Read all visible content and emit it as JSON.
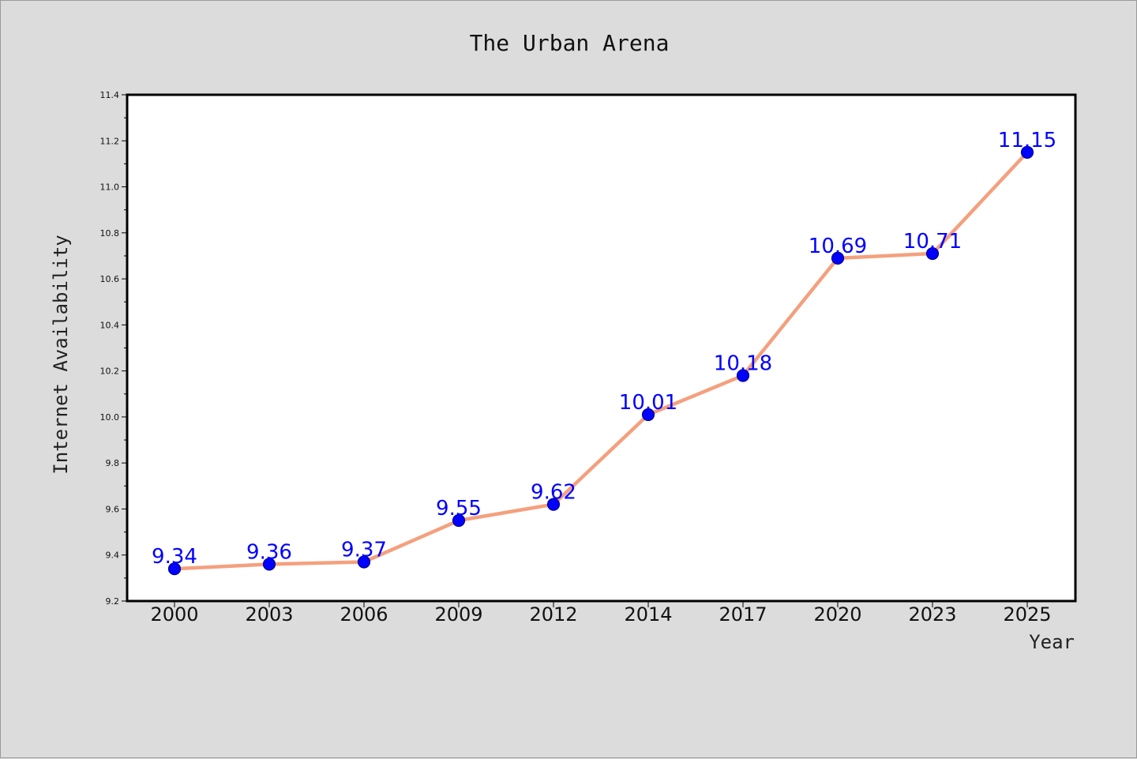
{
  "chart_data": {
    "type": "line",
    "title": "The Urban Arena",
    "xlabel": "Year",
    "ylabel": "Internet Availability",
    "categories": [
      "2000",
      "2003",
      "2006",
      "2009",
      "2012",
      "2014",
      "2017",
      "2020",
      "2023",
      "2025"
    ],
    "series": [
      {
        "values": [
          9.34,
          9.36,
          9.37,
          9.55,
          9.62,
          10.01,
          10.18,
          10.69,
          10.71,
          11.15
        ],
        "data_labels": [
          "9.34",
          "9.36",
          "9.37",
          "9.55",
          "9.62",
          "10.01",
          "10.18",
          "10.69",
          "10.71",
          "11.15"
        ]
      }
    ],
    "ylim": [
      9.2,
      11.4
    ],
    "yticks": [
      "9.2",
      "9.4",
      "9.6",
      "9.8",
      "10.0",
      "10.2",
      "10.4",
      "10.6",
      "10.8",
      "11.0",
      "11.2",
      "11.4"
    ],
    "grid": false,
    "legend": "none",
    "colors": {
      "line": "#f4a07e",
      "marker": "#0000ff",
      "marker_edge": "#00008b",
      "data_label": "#0000ff",
      "plot_background": "#ffffff",
      "figure_background": "#dcdcdc"
    }
  }
}
